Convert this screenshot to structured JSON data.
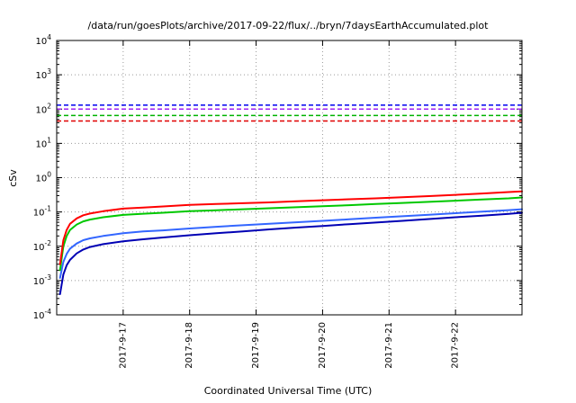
{
  "chart_data": {
    "type": "line",
    "title": "/data/run/goesPlots/archive/2017-09-22/flux/../bryn/7daysEarthAccumulated.plot",
    "xlabel": "Coordinated Universal Time (UTC)",
    "ylabel": "cSv",
    "grid": true,
    "legend_position": "none",
    "x_axis": {
      "min_day": 0,
      "max_day": 7,
      "tick_days": [
        1,
        2,
        3,
        4,
        5,
        6
      ],
      "tick_labels": [
        "2017-9-17",
        "2017-9-18",
        "2017-9-19",
        "2017-9-20",
        "2017-9-21",
        "2017-9-22"
      ]
    },
    "y_axis": {
      "scale": "log",
      "min_exp": -4,
      "max_exp": 4,
      "tick_exponents": [
        4,
        3,
        2,
        1,
        0,
        -1,
        -2,
        -3,
        -4
      ]
    },
    "limit_lines": [
      {
        "name": "blue-limit",
        "value": 130,
        "color": "#0000ee",
        "style": "dashed"
      },
      {
        "name": "purple-limit",
        "value": 100,
        "color": "#a020f0",
        "style": "dashed"
      },
      {
        "name": "green-limit",
        "value": 65,
        "color": "#00b400",
        "style": "dashed"
      },
      {
        "name": "red-limit",
        "value": 45,
        "color": "#e00000",
        "style": "dashed"
      }
    ],
    "x_days": [
      0.05,
      0.1,
      0.15,
      0.2,
      0.3,
      0.4,
      0.5,
      0.7,
      1.0,
      1.3,
      1.6,
      2.0,
      2.4,
      2.8,
      3.2,
      3.6,
      4.0,
      4.4,
      4.8,
      5.2,
      5.6,
      6.0,
      6.4,
      6.8,
      7.0
    ],
    "series": [
      {
        "name": "dark-blue-accumulated",
        "color": "#0000b4",
        "values": [
          0.0004,
          0.0015,
          0.0028,
          0.004,
          0.0062,
          0.008,
          0.0095,
          0.0115,
          0.014,
          0.016,
          0.018,
          0.021,
          0.024,
          0.027,
          0.031,
          0.035,
          0.039,
          0.044,
          0.049,
          0.055,
          0.062,
          0.07,
          0.078,
          0.088,
          0.095
        ]
      },
      {
        "name": "light-blue-accumulated",
        "color": "#3366ff",
        "values": [
          0.0012,
          0.0035,
          0.006,
          0.0085,
          0.012,
          0.015,
          0.017,
          0.02,
          0.024,
          0.027,
          0.029,
          0.033,
          0.037,
          0.041,
          0.045,
          0.05,
          0.055,
          0.061,
          0.068,
          0.075,
          0.083,
          0.092,
          0.102,
          0.113,
          0.12
        ]
      },
      {
        "name": "green-accumulated",
        "color": "#00c800",
        "values": [
          0.002,
          0.01,
          0.02,
          0.03,
          0.043,
          0.053,
          0.06,
          0.07,
          0.082,
          0.089,
          0.095,
          0.105,
          0.112,
          0.12,
          0.128,
          0.137,
          0.147,
          0.158,
          0.17,
          0.183,
          0.197,
          0.213,
          0.23,
          0.25,
          0.265
        ]
      },
      {
        "name": "red-accumulated",
        "color": "#ff0000",
        "values": [
          0.003,
          0.015,
          0.03,
          0.045,
          0.065,
          0.08,
          0.09,
          0.105,
          0.125,
          0.135,
          0.145,
          0.16,
          0.17,
          0.18,
          0.19,
          0.205,
          0.22,
          0.235,
          0.25,
          0.27,
          0.29,
          0.315,
          0.345,
          0.38,
          0.4
        ]
      }
    ]
  }
}
